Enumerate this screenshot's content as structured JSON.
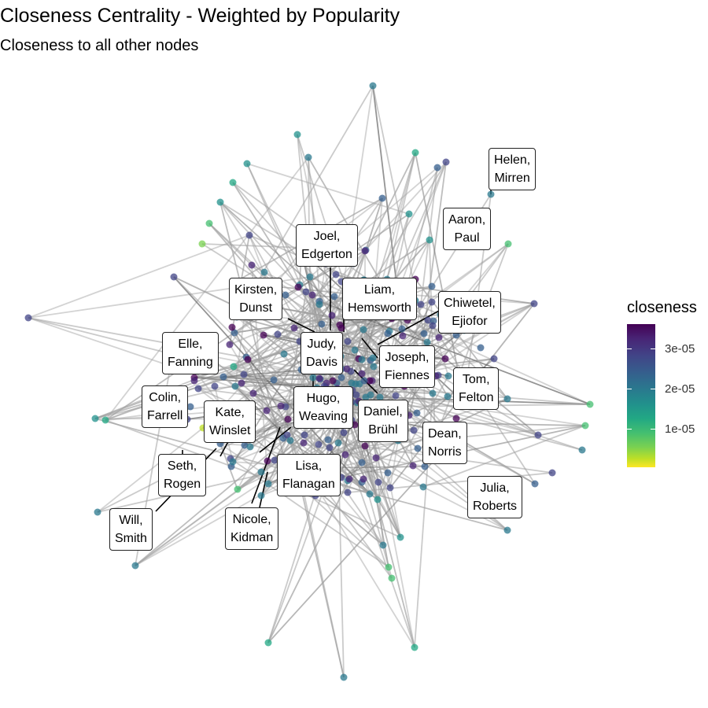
{
  "title": "Closeness Centrality - Weighted by Popularity",
  "subtitle": "Closeness to all other nodes",
  "legend": {
    "title": "closeness",
    "ticks": [
      "3e-05",
      "2e-05",
      "1e-05"
    ]
  },
  "colors": {
    "edge": "#808080",
    "label_border": "#222222",
    "palette": "viridis"
  },
  "labels": [
    {
      "line1": "Helen,",
      "line2": "Mirren"
    },
    {
      "line1": "Aaron,",
      "line2": "Paul"
    },
    {
      "line1": "Joel,",
      "line2": "Edgerton"
    },
    {
      "line1": "Kirsten,",
      "line2": "Dunst"
    },
    {
      "line1": "Liam,",
      "line2": "Hemsworth"
    },
    {
      "line1": "Chiwetel,",
      "line2": "Ejiofor"
    },
    {
      "line1": "Elle,",
      "line2": "Fanning"
    },
    {
      "line1": "Judy,",
      "line2": "Davis"
    },
    {
      "line1": "Joseph,",
      "line2": "Fiennes"
    },
    {
      "line1": "Tom,",
      "line2": "Felton"
    },
    {
      "line1": "Colin,",
      "line2": "Farrell"
    },
    {
      "line1": "Kate,",
      "line2": "Winslet"
    },
    {
      "line1": "Hugo,",
      "line2": "Weaving"
    },
    {
      "line1": "Daniel,",
      "line2": "Brühl"
    },
    {
      "line1": "Dean,",
      "line2": "Norris"
    },
    {
      "line1": "Seth,",
      "line2": "Rogen"
    },
    {
      "line1": "Lisa,",
      "line2": "Flanagan"
    },
    {
      "line1": "Julia,",
      "line2": "Roberts"
    },
    {
      "line1": "Will,",
      "line2": "Smith"
    },
    {
      "line1": "Nicole,",
      "line2": "Kidman"
    }
  ]
}
